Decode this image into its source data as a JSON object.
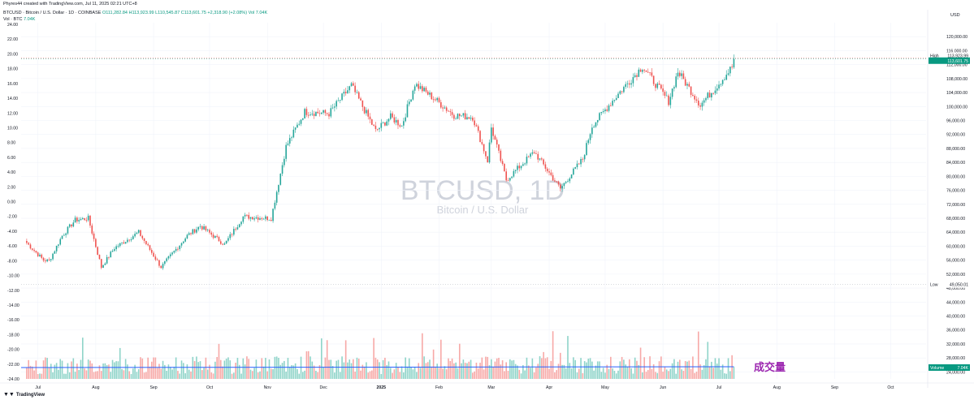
{
  "header": {
    "credit": "Phyres44 created with TradingView.com, Jul 11, 2025 02:21 UTC+8",
    "symbol": "BTCUSD · Bitcoin / U.S. Dollar · 1D · COINBASE",
    "ohlc": "O111,282.84 H113,923.99 L110,545.87 C113,601.75 +2,318.90 (+2.08%)",
    "vol_label": "Vol 7.04K",
    "vol_sub": "Vol · BTC",
    "vol_sub_value": "7.04K",
    "price_unit": "USD"
  },
  "watermark": {
    "title": "BTCUSD, 1D",
    "subtitle": "Bitcoin / U.S. Dollar"
  },
  "volume_annotation": "成交量",
  "footer": {
    "brand": "TradingView"
  },
  "colors": {
    "up": "#26a69a",
    "down": "#ef5350",
    "vol_up": "#8fd4c9",
    "vol_down": "#f7a9a7",
    "vol_ma": "#2962ff",
    "tag_green": "#089981",
    "annotation": "#9c27b0"
  },
  "chart_data": {
    "type": "candlestick",
    "symbol": "BTCUSD",
    "interval": "1D",
    "right_axis": {
      "unit": "USD",
      "ticks": [
        "24,000.00",
        "28,000.00",
        "32,000.00",
        "36,000.00",
        "40,000.00",
        "44,000.00",
        "48,000.00",
        "52,000.00",
        "56,000.00",
        "60,000.00",
        "64,000.00",
        "68,000.00",
        "72,000.00",
        "76,000.00",
        "80,000.00",
        "84,000.00",
        "88,000.00",
        "92,000.00",
        "96,000.00",
        "100,000.00",
        "104,000.00",
        "108,000.00",
        "112,000.00",
        "116,000.00",
        "120,000.00"
      ],
      "range": [
        22000,
        124000
      ]
    },
    "left_axis": {
      "ticks": [
        "24.00",
        "22.00",
        "20.00",
        "18.00",
        "16.00",
        "14.00",
        "12.00",
        "10.00",
        "8.00",
        "6.00",
        "4.00",
        "2.00",
        "0.00",
        "-2.00",
        "-4.00",
        "-6.00",
        "-8.00",
        "-10.00",
        "-12.00",
        "-14.00",
        "-16.00",
        "-18.00",
        "-20.00",
        "-22.00",
        "-24.00"
      ]
    },
    "x_ticks": [
      "Jul",
      "Aug",
      "Sep",
      "Oct",
      "Nov",
      "Dec",
      "2025",
      "Feb",
      "Mar",
      "Apr",
      "May",
      "Jun",
      "Jul",
      "Aug",
      "Sep",
      "Oct"
    ],
    "price_path": [
      {
        "date": "2024-06-25",
        "close": 61500
      },
      {
        "date": "2024-07-05",
        "close": 56000
      },
      {
        "date": "2024-07-08",
        "close": 55800
      },
      {
        "date": "2024-07-15",
        "close": 63000
      },
      {
        "date": "2024-07-22",
        "close": 67500
      },
      {
        "date": "2024-07-29",
        "close": 68000
      },
      {
        "date": "2024-08-05",
        "close": 54000
      },
      {
        "date": "2024-08-12",
        "close": 59500
      },
      {
        "date": "2024-08-25",
        "close": 64000
      },
      {
        "date": "2024-09-06",
        "close": 54000
      },
      {
        "date": "2024-09-20",
        "close": 63000
      },
      {
        "date": "2024-09-27",
        "close": 65800
      },
      {
        "date": "2024-10-10",
        "close": 60500
      },
      {
        "date": "2024-10-20",
        "close": 68500
      },
      {
        "date": "2024-11-04",
        "close": 68000
      },
      {
        "date": "2024-11-12",
        "close": 88500
      },
      {
        "date": "2024-11-22",
        "close": 98500
      },
      {
        "date": "2024-12-05",
        "close": 98000
      },
      {
        "date": "2024-12-17",
        "close": 106000
      },
      {
        "date": "2024-12-30",
        "close": 93000
      },
      {
        "date": "2025-01-07",
        "close": 97000
      },
      {
        "date": "2025-01-13",
        "close": 94500
      },
      {
        "date": "2025-01-20",
        "close": 106500
      },
      {
        "date": "2025-01-31",
        "close": 102000
      },
      {
        "date": "2025-02-10",
        "close": 97500
      },
      {
        "date": "2025-02-20",
        "close": 97000
      },
      {
        "date": "2025-02-28",
        "close": 84500
      },
      {
        "date": "2025-03-02",
        "close": 94000
      },
      {
        "date": "2025-03-10",
        "close": 79000
      },
      {
        "date": "2025-03-25",
        "close": 87000
      },
      {
        "date": "2025-04-08",
        "close": 76500
      },
      {
        "date": "2025-04-20",
        "close": 85000
      },
      {
        "date": "2025-04-25",
        "close": 94500
      },
      {
        "date": "2025-05-08",
        "close": 103000
      },
      {
        "date": "2025-05-22",
        "close": 111500
      },
      {
        "date": "2025-06-05",
        "close": 101500
      },
      {
        "date": "2025-06-10",
        "close": 110000
      },
      {
        "date": "2025-06-22",
        "close": 100500
      },
      {
        "date": "2025-07-01",
        "close": 106000
      },
      {
        "date": "2025-07-09",
        "close": 111300
      },
      {
        "date": "2025-07-10",
        "close": 113601.75
      }
    ],
    "last_price": "113,601.75",
    "high_marker": {
      "label": "High",
      "value": "113,923.99"
    },
    "low_marker": {
      "label": "Low",
      "value": "49,050.01"
    },
    "volume": {
      "label": "Volume",
      "last": "7.04K"
    }
  }
}
